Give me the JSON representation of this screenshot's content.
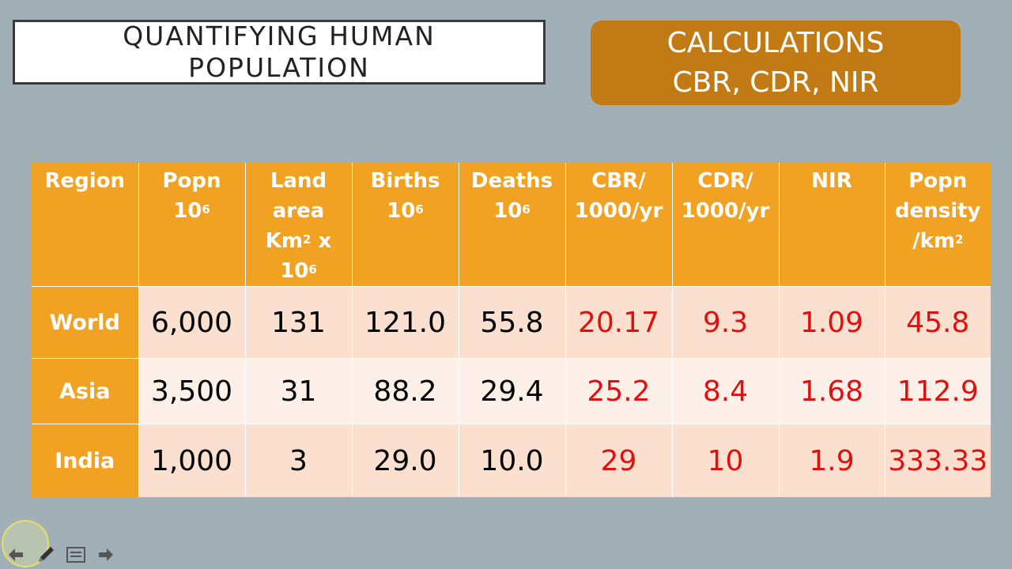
{
  "title": {
    "line1": "QUANTIFYING HUMAN",
    "line2": "POPULATION"
  },
  "calc_box": {
    "line1": "CALCULATIONS",
    "line2": "CBR, CDR, NIR"
  },
  "table": {
    "headers": [
      {
        "text": "Region",
        "sup": ""
      },
      {
        "text": "Popn 10",
        "sup": "6"
      },
      {
        "text": "Land area Km",
        "sup": "2",
        "after": " x 10",
        "sup2": "6"
      },
      {
        "text": "Births 10",
        "sup": "6"
      },
      {
        "text": "Deaths 10",
        "sup": "6"
      },
      {
        "text": "CBR/ 1000/yr",
        "sup": ""
      },
      {
        "text": "CDR/ 1000/yr",
        "sup": ""
      },
      {
        "text": "NIR",
        "sup": ""
      },
      {
        "text": "Popn density /km",
        "sup": "2"
      }
    ],
    "rows": [
      [
        "World",
        "6,000",
        "131",
        "121.0",
        "55.8",
        "20.17",
        "9.3",
        "1.09",
        "45.8"
      ],
      [
        "Asia",
        "3,500",
        "31",
        "88.2",
        "29.4",
        "25.2",
        "8.4",
        "1.68",
        "112.9"
      ],
      [
        "India",
        "1,000",
        "3",
        "29.0",
        "10.0",
        "29",
        "10",
        "1.9",
        "333.33"
      ]
    ]
  },
  "nav": {
    "icons": [
      "back-arrow-icon",
      "pen-icon",
      "menu-icon",
      "forward-arrow-icon"
    ]
  },
  "colors": {
    "header": "#f2a222",
    "calc_text": "#e01010",
    "calc_box": "#c27a14",
    "background": "#a1b0b7"
  }
}
